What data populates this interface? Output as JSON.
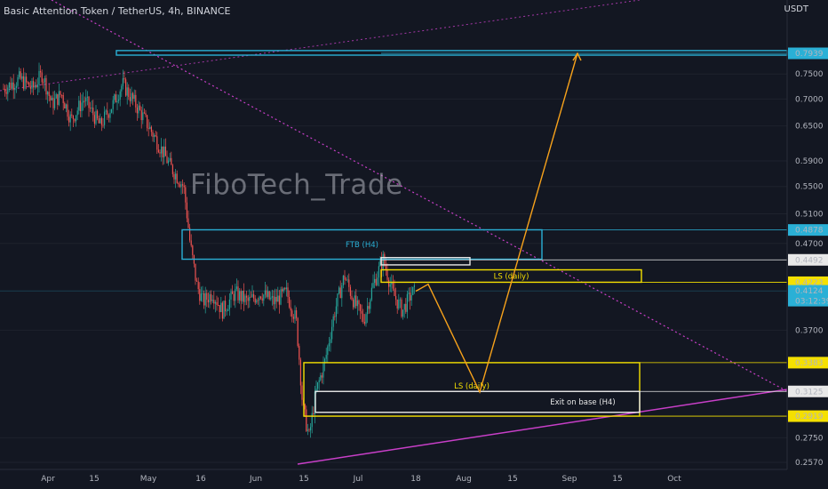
{
  "header": {
    "title": "Basic Attention Token / TetherUS, 4h, BINANCE",
    "currency": "USDT"
  },
  "watermark": "FiboTech_Trade",
  "colors": {
    "bg": "#131722",
    "up": "#26a69a",
    "down": "#ef5350",
    "cyan": "#2ab0d6",
    "yellow": "#f5e000",
    "white": "#e8e8e8",
    "orange": "#f7a21b",
    "magenta": "#c83fc8"
  },
  "chart_data": {
    "type": "candlestick",
    "log_scale": true,
    "y_ticks": [
      "0.7500",
      "0.7000",
      "0.6500",
      "0.5900",
      "0.5500",
      "0.5100",
      "0.4700",
      "0.3700",
      "0.2750",
      "0.2570"
    ],
    "x_ticks": [
      "Apr",
      "15",
      "May",
      "16",
      "Jun",
      "15",
      "Jul",
      "18",
      "Aug",
      "15",
      "Sep",
      "15",
      "Oct"
    ],
    "price_labels": [
      {
        "value": "0.7939",
        "style": "cyan"
      },
      {
        "value": "0.4878",
        "style": "cyan"
      },
      {
        "value": "0.4492",
        "style": "white"
      },
      {
        "value": "0.4223",
        "style": "yellow"
      },
      {
        "value": "0.4124",
        "style": "cyan",
        "sub": "03:12:39"
      },
      {
        "value": "0.3383",
        "style": "yellow"
      },
      {
        "value": "0.3125",
        "style": "white"
      },
      {
        "value": "0.2919",
        "style": "yellow"
      }
    ],
    "path_points": [
      {
        "t": "0",
        "p": 0.72
      },
      {
        "t": "5",
        "p": 0.74
      },
      {
        "t": "9",
        "p": 0.72
      },
      {
        "t": "12",
        "p": 0.75
      },
      {
        "t": "15",
        "p": 0.69
      },
      {
        "t": "18",
        "p": 0.71
      },
      {
        "t": "21",
        "p": 0.66
      },
      {
        "t": "25",
        "p": 0.7
      },
      {
        "t": "30",
        "p": 0.65
      },
      {
        "t": "34",
        "p": 0.69
      },
      {
        "t": "37",
        "p": 0.73
      },
      {
        "t": "40",
        "p": 0.7
      },
      {
        "t": "44",
        "p": 0.66
      },
      {
        "t": "48",
        "p": 0.62
      },
      {
        "t": "52",
        "p": 0.58
      },
      {
        "t": "56",
        "p": 0.55
      },
      {
        "t": "58",
        "p": 0.47
      },
      {
        "t": "60",
        "p": 0.42
      },
      {
        "t": "62",
        "p": 0.4
      },
      {
        "t": "65",
        "p": 0.41
      },
      {
        "t": "68",
        "p": 0.39
      },
      {
        "t": "72",
        "p": 0.41
      },
      {
        "t": "76",
        "p": 0.4
      },
      {
        "t": "80",
        "p": 0.41
      },
      {
        "t": "84",
        "p": 0.4
      },
      {
        "t": "88",
        "p": 0.41
      },
      {
        "t": "91",
        "p": 0.38
      },
      {
        "t": "93",
        "p": 0.3
      },
      {
        "t": "95",
        "p": 0.275
      },
      {
        "t": "97",
        "p": 0.31
      },
      {
        "t": "100",
        "p": 0.34
      },
      {
        "t": "103",
        "p": 0.39
      },
      {
        "t": "106",
        "p": 0.43
      },
      {
        "t": "109",
        "p": 0.4
      },
      {
        "t": "112",
        "p": 0.38
      },
      {
        "t": "115",
        "p": 0.42
      },
      {
        "t": "118",
        "p": 0.45
      },
      {
        "t": "121",
        "p": 0.41
      },
      {
        "t": "124",
        "p": 0.39
      },
      {
        "t": "127",
        "p": 0.41
      },
      {
        "t": "129",
        "p": 0.412
      }
    ],
    "zones": [
      {
        "label": "",
        "color": "cyan",
        "top": 0.8,
        "bottom": 0.79
      },
      {
        "label": "FTB (H4)",
        "color": "cyan",
        "top": 0.488,
        "bottom": 0.45
      },
      {
        "label": "",
        "color": "white",
        "top": 0.452,
        "bottom": 0.443
      },
      {
        "label": "LS (daily)",
        "color": "yellow",
        "top": 0.437,
        "bottom": 0.4223
      },
      {
        "label": "LS (daily)",
        "color": "yellow",
        "top": 0.3383,
        "bottom": 0.2919
      },
      {
        "label": "Exit on base (H4)",
        "color": "white",
        "top": 0.3125,
        "bottom": 0.295
      }
    ],
    "projection": [
      0.412,
      0.42,
      0.312,
      0.7939
    ]
  }
}
